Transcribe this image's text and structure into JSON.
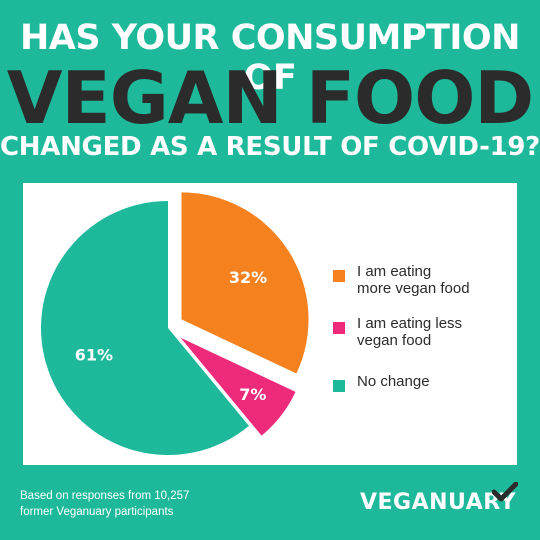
{
  "title": {
    "line1": "HAS YOUR CONSUMPTION OF",
    "line2": "VEGAN FOOD",
    "line3": "CHANGED AS A RESULT OF COVID-19?"
  },
  "chart_data": {
    "type": "pie",
    "slices": [
      {
        "label": "I am eating more vegan food",
        "value": 32,
        "display": "32%",
        "color": "#F5821F",
        "exploded": true
      },
      {
        "label": "I am eating less vegan food",
        "value": 7,
        "display": "7%",
        "color": "#EE2A7B",
        "exploded": true
      },
      {
        "label": "No change",
        "value": 61,
        "display": "61%",
        "color": "#1DB99A",
        "exploded": false
      }
    ],
    "legend_position": "right"
  },
  "legend": [
    {
      "line1": "I am eating",
      "line2": "more vegan food",
      "color": "#F5821F"
    },
    {
      "line1": "I am eating less",
      "line2": "vegan food",
      "color": "#EE2A7B"
    },
    {
      "line1": "No change",
      "line2": "",
      "color": "#1DB99A"
    }
  ],
  "footnote": {
    "line1": "Based on responses from 10,257",
    "line2": "former Veganuary participants"
  },
  "logo": {
    "text": "VEGANUARY",
    "icon": "check-mark-icon"
  },
  "colors": {
    "background": "#1DB99A",
    "title_dark": "#2B2B2B",
    "panel": "#ffffff"
  }
}
